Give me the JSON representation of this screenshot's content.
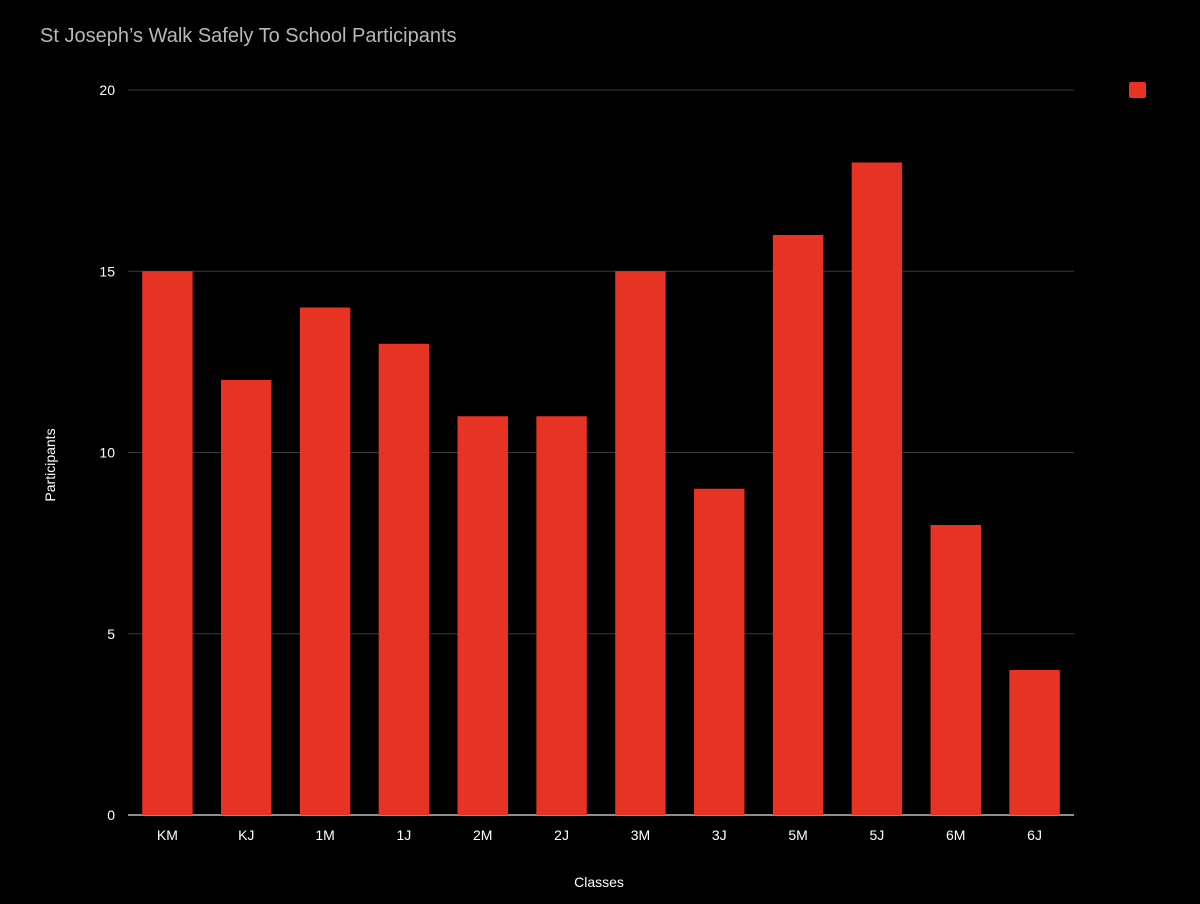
{
  "chart_data": {
    "type": "bar",
    "title": "St Joseph’s Walk Safely To School Participants",
    "xlabel": "Classes",
    "ylabel": "Participants",
    "categories": [
      "KM",
      "KJ",
      "1M",
      "1J",
      "2M",
      "2J",
      "3M",
      "3J",
      "5M",
      "5J",
      "6M",
      "6J"
    ],
    "series": [
      {
        "values": [
          15,
          12,
          14,
          13,
          11,
          11,
          15,
          9,
          16,
          18,
          8,
          4
        ],
        "color": "#e63323"
      }
    ],
    "ylim": [
      0,
      20
    ],
    "yticks": [
      0,
      5,
      10,
      15,
      20
    ],
    "grid": true,
    "legend": "top-right",
    "background": "#000000"
  }
}
